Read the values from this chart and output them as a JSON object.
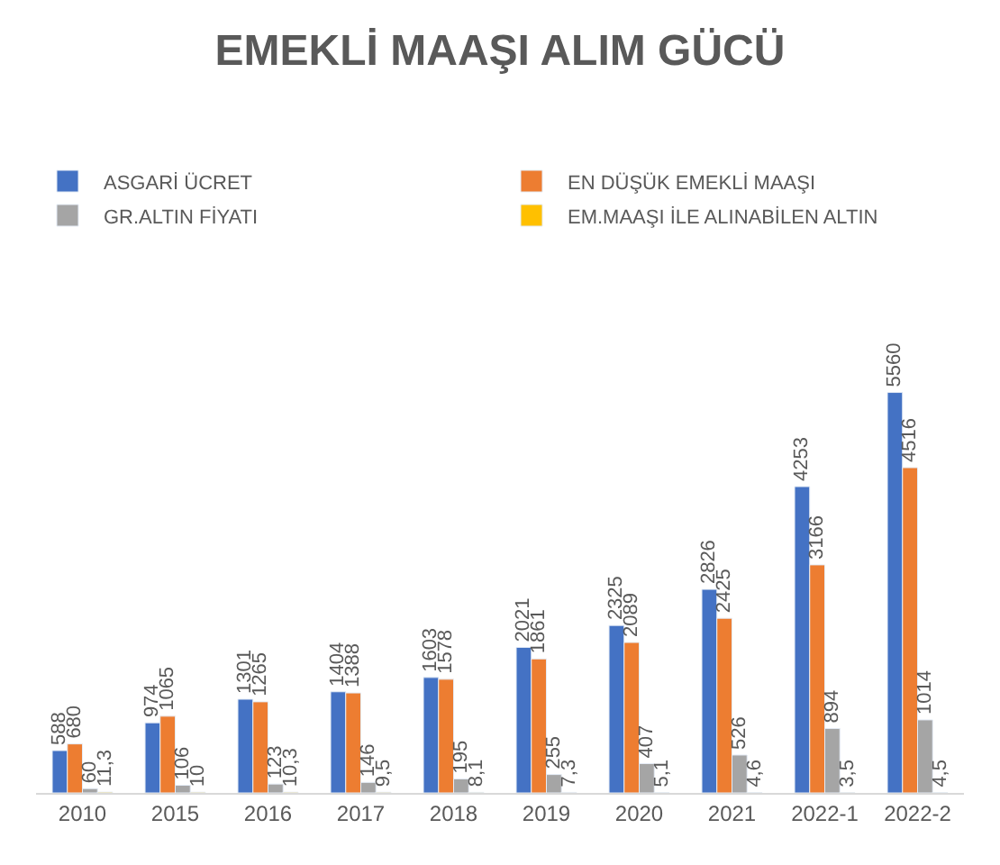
{
  "chart_data": {
    "type": "bar",
    "title": "EMEKLİ MAAŞI ALIM GÜCÜ",
    "categories": [
      "2010",
      "2015",
      "2016",
      "2017",
      "2018",
      "2019",
      "2020",
      "2021",
      "2022-1",
      "2022-2"
    ],
    "series": [
      {
        "name": "ASGARİ ÜCRET",
        "color": "#4472c4",
        "values": [
          588,
          974,
          1301,
          1404,
          1603,
          2021,
          2325,
          2826,
          4253,
          5560
        ],
        "value_labels": [
          "588",
          "974",
          "1301",
          "1404",
          "1603",
          "2021",
          "2325",
          "2826",
          "4253",
          "5560"
        ]
      },
      {
        "name": "EN DÜŞÜK EMEKLİ MAAŞI",
        "color": "#ed7d31",
        "values": [
          680,
          1065,
          1265,
          1388,
          1578,
          1861,
          2089,
          2425,
          3166,
          4516
        ],
        "value_labels": [
          "680",
          "1065",
          "1265",
          "1388",
          "1578",
          "1861",
          "2089",
          "2425",
          "3166",
          "4516"
        ]
      },
      {
        "name": "GR.ALTIN FİYATI",
        "color": "#a5a5a5",
        "values": [
          60,
          106,
          123,
          146,
          195,
          255,
          407,
          526,
          894,
          1014
        ],
        "value_labels": [
          "60",
          "106",
          "123",
          "146",
          "195",
          "255",
          "407",
          "526",
          "894",
          "1014"
        ]
      },
      {
        "name": "EM.MAAŞI İLE ALINABİLEN ALTIN",
        "color": "#ffc000",
        "values": [
          11.3,
          10,
          10.3,
          9.5,
          8.1,
          7.3,
          5.1,
          4.6,
          3.5,
          4.5
        ],
        "value_labels": [
          "11,3",
          "10",
          "10,3",
          "9,5",
          "8,1",
          "7,3",
          "5,1",
          "4,6",
          "3,5",
          "4,5"
        ]
      }
    ],
    "legend": "top"
  }
}
